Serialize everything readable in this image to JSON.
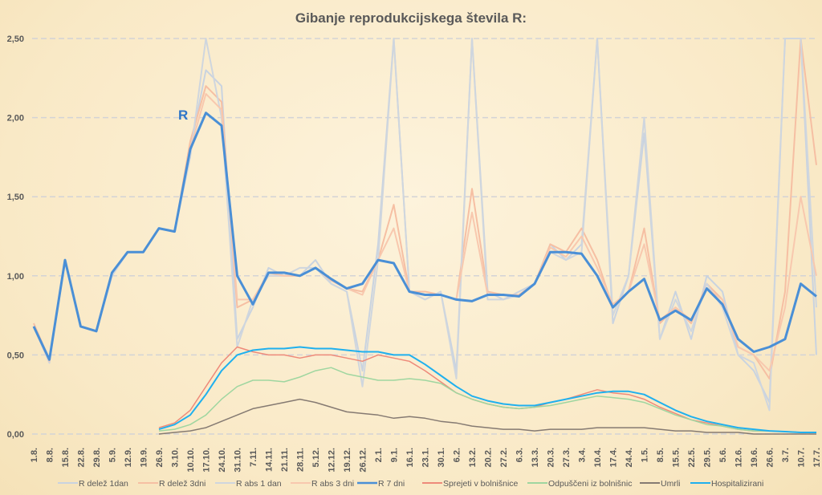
{
  "chart_data": {
    "type": "line",
    "title": "Gibanje reprodukcijskega števila R:",
    "annotation": "R",
    "xlabel": "",
    "ylabel": "",
    "ylim": [
      0,
      2.5
    ],
    "yticks": [
      "0,00",
      "0,50",
      "1,00",
      "1,50",
      "2,00",
      "2,50"
    ],
    "grid": true,
    "legend_position": "bottom",
    "categories": [
      "1.8.",
      "8.8.",
      "15.8.",
      "22.8.",
      "29.8.",
      "5.9.",
      "12.9.",
      "19.9.",
      "26.9.",
      "3.10.",
      "10.10.",
      "17.10.",
      "24.10.",
      "31.10.",
      "7.11.",
      "14.11.",
      "21.11.",
      "28.11.",
      "5.12.",
      "12.12.",
      "19.12.",
      "26.12.",
      "2.1.",
      "9.1.",
      "16.1.",
      "23.1.",
      "30.1.",
      "6.2.",
      "13.2.",
      "20.2.",
      "27.2.",
      "6.3.",
      "13.3.",
      "20.3.",
      "27.3.",
      "3.4.",
      "10.4.",
      "17.4.",
      "24.4.",
      "1.5.",
      "8.5.",
      "15.5.",
      "22.5.",
      "29.5.",
      "5.6.",
      "12.6.",
      "19.6.",
      "26.6.",
      "3.7.",
      "10.7.",
      "17.7."
    ],
    "series": [
      {
        "name": "R delež 1dan",
        "color": "#c9d3e0",
        "width": 2,
        "values": [
          0.7,
          0.45,
          1.1,
          0.68,
          0.65,
          1.0,
          1.15,
          1.15,
          1.3,
          1.28,
          1.8,
          2.3,
          2.2,
          0.6,
          0.8,
          1.05,
          1.0,
          1.0,
          1.1,
          0.95,
          0.9,
          0.4,
          1.2,
          2.5,
          0.9,
          0.85,
          0.9,
          0.4,
          2.5,
          0.9,
          0.85,
          0.9,
          0.95,
          1.2,
          1.1,
          1.2,
          2.5,
          0.7,
          1.0,
          1.9,
          0.6,
          0.9,
          0.6,
          1.0,
          0.9,
          0.5,
          0.4,
          0.2,
          2.5,
          2.5,
          0.5
        ]
      },
      {
        "name": "R delež 3dni",
        "color": "#f6bfa3",
        "width": 2,
        "values": [
          0.7,
          0.47,
          1.1,
          0.68,
          0.65,
          1.02,
          1.15,
          1.15,
          1.3,
          1.28,
          1.85,
          2.2,
          2.1,
          0.8,
          0.85,
          1.0,
          1.0,
          1.0,
          1.05,
          0.98,
          0.92,
          0.9,
          1.1,
          1.45,
          0.9,
          0.9,
          0.88,
          0.85,
          1.55,
          0.9,
          0.88,
          0.88,
          0.95,
          1.2,
          1.15,
          1.3,
          1.1,
          0.8,
          0.9,
          1.3,
          0.7,
          0.8,
          0.7,
          0.95,
          0.85,
          0.55,
          0.5,
          0.35,
          0.9,
          2.5,
          1.7
        ]
      },
      {
        "name": "R abs 1 dan",
        "color": "#cfd6de",
        "width": 2,
        "values": [
          0.68,
          0.45,
          1.1,
          0.68,
          0.65,
          1.0,
          1.15,
          1.15,
          1.3,
          1.28,
          1.75,
          2.5,
          2.0,
          0.55,
          0.85,
          1.0,
          1.0,
          1.05,
          1.05,
          0.95,
          0.9,
          0.3,
          1.1,
          2.5,
          0.9,
          0.85,
          0.9,
          0.35,
          2.5,
          0.85,
          0.85,
          0.88,
          0.95,
          1.15,
          1.1,
          1.15,
          2.5,
          0.75,
          1.0,
          2.0,
          0.6,
          0.85,
          0.65,
          0.95,
          0.8,
          0.5,
          0.45,
          0.15,
          2.5,
          2.5,
          0.8
        ]
      },
      {
        "name": "R abs 3 dni",
        "color": "#f8c8ae",
        "width": 2,
        "values": [
          0.68,
          0.46,
          1.1,
          0.68,
          0.65,
          1.02,
          1.15,
          1.15,
          1.3,
          1.28,
          1.8,
          2.15,
          2.05,
          0.85,
          0.85,
          1.02,
          1.0,
          1.0,
          1.05,
          0.97,
          0.92,
          0.88,
          1.1,
          1.3,
          0.9,
          0.88,
          0.88,
          0.85,
          1.4,
          0.88,
          0.88,
          0.88,
          0.95,
          1.18,
          1.12,
          1.25,
          1.05,
          0.82,
          0.9,
          1.2,
          0.72,
          0.8,
          0.72,
          0.92,
          0.85,
          0.55,
          0.5,
          0.4,
          0.8,
          1.5,
          1.0
        ]
      },
      {
        "name": "R 7 dni",
        "color": "#4a8fd6",
        "width": 3,
        "values": [
          0.68,
          0.47,
          1.1,
          0.68,
          0.65,
          1.02,
          1.15,
          1.15,
          1.3,
          1.28,
          1.8,
          2.03,
          1.95,
          1.0,
          0.82,
          1.02,
          1.02,
          1.0,
          1.05,
          0.98,
          0.92,
          0.95,
          1.1,
          1.08,
          0.9,
          0.88,
          0.88,
          0.85,
          0.84,
          0.88,
          0.88,
          0.87,
          0.95,
          1.15,
          1.15,
          1.14,
          1.0,
          0.8,
          0.9,
          0.98,
          0.72,
          0.78,
          0.72,
          0.92,
          0.82,
          0.6,
          0.52,
          0.55,
          0.6,
          0.95,
          0.87
        ]
      },
      {
        "name": "Sprejeti v bolnišnice",
        "color": "#ee8a7a",
        "width": 1.5,
        "values": [
          null,
          null,
          null,
          null,
          null,
          null,
          null,
          null,
          0.04,
          0.07,
          0.15,
          0.3,
          0.45,
          0.55,
          0.52,
          0.5,
          0.5,
          0.48,
          0.5,
          0.5,
          0.48,
          0.46,
          0.5,
          0.48,
          0.46,
          0.4,
          0.33,
          0.26,
          0.22,
          0.19,
          0.17,
          0.16,
          0.17,
          0.2,
          0.22,
          0.25,
          0.28,
          0.26,
          0.25,
          0.22,
          0.17,
          0.13,
          0.09,
          0.07,
          0.05,
          0.03,
          0.02,
          0.02,
          0.015,
          0.01,
          0.01
        ]
      },
      {
        "name": "Odpuščeni iz bolnišnic",
        "color": "#9fd6a0",
        "width": 1.5,
        "values": [
          null,
          null,
          null,
          null,
          null,
          null,
          null,
          null,
          0.02,
          0.03,
          0.06,
          0.12,
          0.22,
          0.3,
          0.34,
          0.34,
          0.33,
          0.36,
          0.4,
          0.42,
          0.38,
          0.36,
          0.34,
          0.34,
          0.35,
          0.34,
          0.32,
          0.26,
          0.22,
          0.19,
          0.17,
          0.16,
          0.17,
          0.18,
          0.2,
          0.22,
          0.24,
          0.23,
          0.22,
          0.2,
          0.16,
          0.12,
          0.09,
          0.06,
          0.05,
          0.03,
          0.02,
          0.02,
          0.015,
          0.01,
          0.01
        ]
      },
      {
        "name": "Umrli",
        "color": "#857a72",
        "width": 1.5,
        "values": [
          null,
          null,
          null,
          null,
          null,
          null,
          null,
          null,
          0.0,
          0.01,
          0.02,
          0.04,
          0.08,
          0.12,
          0.16,
          0.18,
          0.2,
          0.22,
          0.2,
          0.17,
          0.14,
          0.13,
          0.12,
          0.1,
          0.11,
          0.1,
          0.08,
          0.07,
          0.05,
          0.04,
          0.03,
          0.03,
          0.02,
          0.03,
          0.03,
          0.03,
          0.04,
          0.04,
          0.04,
          0.04,
          0.03,
          0.02,
          0.02,
          0.01,
          0.01,
          0.01,
          0.0,
          0.0,
          0.0,
          0.0,
          0.0
        ]
      },
      {
        "name": "Hospitalizirani",
        "color": "#1fb0ee",
        "width": 2,
        "values": [
          null,
          null,
          null,
          null,
          null,
          null,
          null,
          null,
          0.03,
          0.06,
          0.12,
          0.25,
          0.4,
          0.5,
          0.53,
          0.54,
          0.54,
          0.55,
          0.54,
          0.54,
          0.53,
          0.52,
          0.52,
          0.5,
          0.5,
          0.44,
          0.37,
          0.3,
          0.24,
          0.21,
          0.19,
          0.18,
          0.18,
          0.2,
          0.22,
          0.24,
          0.26,
          0.27,
          0.27,
          0.25,
          0.2,
          0.15,
          0.11,
          0.08,
          0.06,
          0.04,
          0.03,
          0.02,
          0.015,
          0.01,
          0.01
        ]
      }
    ]
  }
}
